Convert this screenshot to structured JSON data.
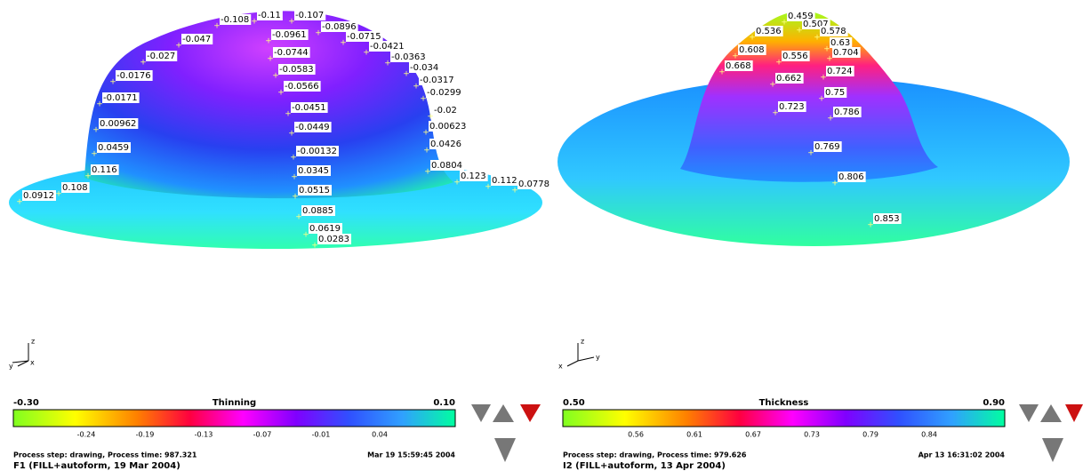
{
  "panels": [
    {
      "labels": [
        "-0.108",
        "-0.11",
        "-0.107",
        "-0.0896",
        "-0.0961",
        "-0.0715",
        "-0.047",
        "-0.0744",
        "-0.0421",
        "-0.0363",
        "-0.027",
        "-0.0583",
        "-0.034",
        "-0.0176",
        "-0.0317",
        "-0.0566",
        "-0.0299",
        "-0.0171",
        "-0.02",
        "-0.0451",
        "0.00962",
        "0.00623",
        "-0.0449",
        "0.0459",
        "0.0426",
        "-0.00132",
        "0.116",
        "0.0804",
        "0.0345",
        "0.123",
        "0.112",
        "0.0778",
        "0.108",
        "0.0515",
        "0.0912",
        "0.0885",
        "0.0619",
        "0.0283"
      ],
      "axes": [
        "z",
        "y",
        "x"
      ],
      "legend": {
        "min": "-0.30",
        "title": "Thinning",
        "max": "0.10",
        "ticks": [
          "-0.24",
          "-0.19",
          "-0.13",
          "-0.07",
          "-0.01",
          "0.04"
        ]
      },
      "process": "Process step: drawing,  Process time: 987.321",
      "date": "Mar 19 15:59:45 2004",
      "run": "F1 (FILL+autoform, 19 Mar 2004)"
    },
    {
      "labels": [
        "0.459",
        "0.507",
        "0.536",
        "0.578",
        "0.63",
        "0.608",
        "0.704",
        "0.556",
        "0.668",
        "0.724",
        "0.662",
        "0.75",
        "0.723",
        "0.786",
        "0.769",
        "0.806",
        "0.853"
      ],
      "axes": [
        "z",
        "x",
        "y"
      ],
      "legend": {
        "min": "0.50",
        "title": "Thickness",
        "max": "0.90",
        "ticks": [
          "0.56",
          "0.61",
          "0.67",
          "0.73",
          "0.79",
          "0.84"
        ]
      },
      "process": "Process step: drawing,  Process time: 979.626",
      "date": "Apr 13 16:31:02 2004",
      "run": "I2 (FILL+autoform, 13 Apr 2004)"
    }
  ]
}
